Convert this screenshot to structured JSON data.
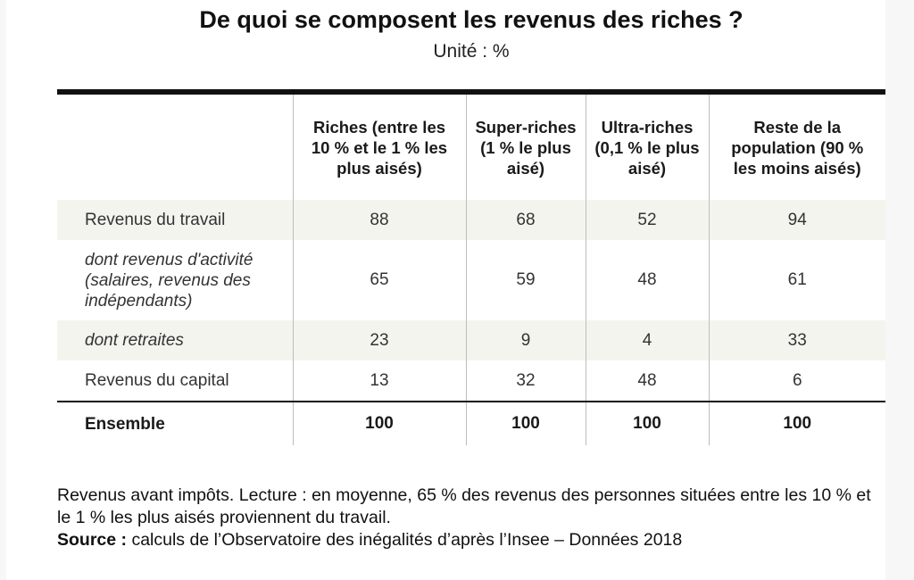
{
  "title": "De quoi se composent les revenus des riches ?",
  "subtitle": "Unité : %",
  "chart_data": {
    "type": "table",
    "columns": [
      "",
      "Riches (entre les 10 % et le 1 % les plus aisés)",
      "Super-riches (1 % le plus aisé)",
      "Ultra-riches (0,1 % le plus aisé)",
      "Reste de la population (90 % les moins aisés)"
    ],
    "rows": [
      {
        "label": "Revenus du travail",
        "italic": false,
        "shaded": true,
        "values": [
          "88",
          "68",
          "52",
          "94"
        ]
      },
      {
        "label": "dont revenus d'activité (salaires, revenus des indépendants)",
        "italic": true,
        "shaded": false,
        "values": [
          "65",
          "59",
          "48",
          "61"
        ]
      },
      {
        "label": "dont retraites",
        "italic": true,
        "shaded": true,
        "values": [
          "23",
          "9",
          "4",
          "33"
        ]
      },
      {
        "label": "Revenus du capital",
        "italic": false,
        "shaded": false,
        "values": [
          "13",
          "32",
          "48",
          "6"
        ]
      }
    ],
    "total": {
      "label": "Ensemble",
      "values": [
        "100",
        "100",
        "100",
        "100"
      ]
    }
  },
  "note": {
    "text": "Revenus avant impôts. Lecture : en moyenne, 65 % des revenus des personnes situées entre les 10 % et le 1 % les plus aisés proviennent du travail.",
    "source_label": "Source :",
    "source_text": " calculs de l’Observatoire des inégalités d’après l’Insee – Données 2018"
  },
  "colors": {
    "shade": "#f4f4ef",
    "rule": "#111111",
    "grid": "#bdbdbd"
  }
}
